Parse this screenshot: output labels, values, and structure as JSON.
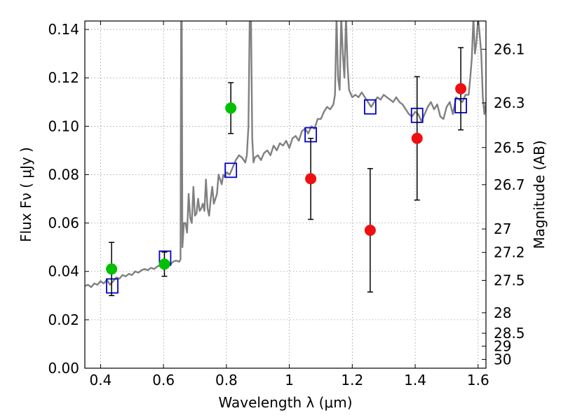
{
  "chart_data": {
    "type": "scatter",
    "xlabel": "Wavelength  λ (μm)",
    "ylabel": "Flux  Fν  ( μJy )",
    "ylabel_right": "Magnitude (AB)",
    "xlim": [
      0.35,
      1.625
    ],
    "ylim": [
      0.0,
      0.1435
    ],
    "grid": true,
    "x_ticks": [
      0.4,
      0.6,
      0.8,
      1.0,
      1.2,
      1.4,
      1.6
    ],
    "x_tick_labels": [
      "0.4",
      "0.6",
      "0.8",
      "1",
      "1.2",
      "1.4",
      "1.6"
    ],
    "y_ticks": [
      0.0,
      0.02,
      0.04,
      0.06,
      0.08,
      0.1,
      0.12,
      0.14
    ],
    "y_tick_labels": [
      "0.00",
      "0.02",
      "0.04",
      "0.06",
      "0.08",
      "0.10",
      "0.12",
      "0.14"
    ],
    "right_ticks": [
      {
        "mag": 26.1,
        "label": "26.1"
      },
      {
        "mag": 26.3,
        "label": "26.3"
      },
      {
        "mag": 26.5,
        "label": "26.5"
      },
      {
        "mag": 26.7,
        "label": "26.7"
      },
      {
        "mag": 27.0,
        "label": "27"
      },
      {
        "mag": 27.2,
        "label": "27.2"
      },
      {
        "mag": 27.5,
        "label": "27.5"
      },
      {
        "mag": 28.0,
        "label": "28"
      },
      {
        "mag": 28.5,
        "label": "28.5"
      },
      {
        "mag": 29.0,
        "label": "29"
      },
      {
        "mag": 30.0,
        "label": "30"
      }
    ],
    "series": [
      {
        "kind": "line",
        "color": "#808080",
        "points": [
          [
            0.35,
            0.034
          ],
          [
            0.36,
            0.0345
          ],
          [
            0.37,
            0.0335
          ],
          [
            0.38,
            0.035
          ],
          [
            0.39,
            0.0345
          ],
          [
            0.4,
            0.036
          ],
          [
            0.41,
            0.035
          ],
          [
            0.42,
            0.0365
          ],
          [
            0.43,
            0.0345
          ],
          [
            0.44,
            0.036
          ],
          [
            0.45,
            0.0375
          ],
          [
            0.46,
            0.037
          ],
          [
            0.47,
            0.0385
          ],
          [
            0.48,
            0.038
          ],
          [
            0.49,
            0.039
          ],
          [
            0.5,
            0.0385
          ],
          [
            0.51,
            0.04
          ],
          [
            0.52,
            0.0395
          ],
          [
            0.53,
            0.0405
          ],
          [
            0.54,
            0.041
          ],
          [
            0.55,
            0.0405
          ],
          [
            0.56,
            0.0415
          ],
          [
            0.57,
            0.041
          ],
          [
            0.58,
            0.042
          ],
          [
            0.59,
            0.0425
          ],
          [
            0.6,
            0.0415
          ],
          [
            0.61,
            0.043
          ],
          [
            0.62,
            0.0425
          ],
          [
            0.63,
            0.044
          ],
          [
            0.64,
            0.0445
          ],
          [
            0.65,
            0.044
          ],
          [
            0.654,
            0.045
          ],
          [
            0.656,
            0.145
          ],
          [
            0.658,
            0.145
          ],
          [
            0.66,
            0.05
          ],
          [
            0.665,
            0.06
          ],
          [
            0.67,
            0.06
          ],
          [
            0.675,
            0.056
          ],
          [
            0.68,
            0.072
          ],
          [
            0.685,
            0.062
          ],
          [
            0.69,
            0.06
          ],
          [
            0.695,
            0.075
          ],
          [
            0.7,
            0.063
          ],
          [
            0.705,
            0.064
          ],
          [
            0.71,
            0.07
          ],
          [
            0.715,
            0.065
          ],
          [
            0.72,
            0.066
          ],
          [
            0.725,
            0.068
          ],
          [
            0.73,
            0.065
          ],
          [
            0.735,
            0.078
          ],
          [
            0.74,
            0.066
          ],
          [
            0.745,
            0.063
          ],
          [
            0.75,
            0.07
          ],
          [
            0.755,
            0.075
          ],
          [
            0.76,
            0.068
          ],
          [
            0.765,
            0.07
          ],
          [
            0.77,
            0.072
          ],
          [
            0.775,
            0.08
          ],
          [
            0.78,
            0.078
          ],
          [
            0.785,
            0.076
          ],
          [
            0.79,
            0.08
          ],
          [
            0.795,
            0.079
          ],
          [
            0.8,
            0.081
          ],
          [
            0.81,
            0.08
          ],
          [
            0.82,
            0.083
          ],
          [
            0.83,
            0.086
          ],
          [
            0.84,
            0.088
          ],
          [
            0.85,
            0.087
          ],
          [
            0.86,
            0.085
          ],
          [
            0.865,
            0.088
          ],
          [
            0.87,
            0.1
          ],
          [
            0.874,
            0.145
          ],
          [
            0.878,
            0.145
          ],
          [
            0.882,
            0.095
          ],
          [
            0.886,
            0.085
          ],
          [
            0.89,
            0.087
          ],
          [
            0.9,
            0.088
          ],
          [
            0.91,
            0.086
          ],
          [
            0.92,
            0.089
          ],
          [
            0.93,
            0.09
          ],
          [
            0.94,
            0.088
          ],
          [
            0.95,
            0.092
          ],
          [
            0.96,
            0.09
          ],
          [
            0.97,
            0.093
          ],
          [
            0.98,
            0.092
          ],
          [
            0.99,
            0.094
          ],
          [
            1.0,
            0.091
          ],
          [
            1.01,
            0.095
          ],
          [
            1.02,
            0.096
          ],
          [
            1.03,
            0.094
          ],
          [
            1.04,
            0.098
          ],
          [
            1.05,
            0.099
          ],
          [
            1.06,
            0.097
          ],
          [
            1.07,
            0.1
          ],
          [
            1.08,
            0.099
          ],
          [
            1.09,
            0.103
          ],
          [
            1.1,
            0.103
          ],
          [
            1.11,
            0.106
          ],
          [
            1.12,
            0.108
          ],
          [
            1.13,
            0.107
          ],
          [
            1.14,
            0.109
          ],
          [
            1.145,
            0.113
          ],
          [
            1.15,
            0.145
          ],
          [
            1.155,
            0.12
          ],
          [
            1.16,
            0.115
          ],
          [
            1.165,
            0.145
          ],
          [
            1.17,
            0.13
          ],
          [
            1.175,
            0.12
          ],
          [
            1.18,
            0.145
          ],
          [
            1.185,
            0.125
          ],
          [
            1.19,
            0.115
          ],
          [
            1.2,
            0.112
          ],
          [
            1.21,
            0.113
          ],
          [
            1.22,
            0.112
          ],
          [
            1.23,
            0.114
          ],
          [
            1.24,
            0.112
          ],
          [
            1.25,
            0.11
          ],
          [
            1.26,
            0.108
          ],
          [
            1.27,
            0.11
          ],
          [
            1.28,
            0.112
          ],
          [
            1.29,
            0.111
          ],
          [
            1.3,
            0.113
          ],
          [
            1.31,
            0.112
          ],
          [
            1.32,
            0.111
          ],
          [
            1.33,
            0.11
          ],
          [
            1.34,
            0.112
          ],
          [
            1.35,
            0.11
          ],
          [
            1.36,
            0.109
          ],
          [
            1.37,
            0.107
          ],
          [
            1.38,
            0.105
          ],
          [
            1.39,
            0.104
          ],
          [
            1.4,
            0.106
          ],
          [
            1.41,
            0.105
          ],
          [
            1.42,
            0.102
          ],
          [
            1.43,
            0.105
          ],
          [
            1.44,
            0.108
          ],
          [
            1.45,
            0.11
          ],
          [
            1.46,
            0.107
          ],
          [
            1.47,
            0.109
          ],
          [
            1.48,
            0.104
          ],
          [
            1.49,
            0.103
          ],
          [
            1.5,
            0.108
          ],
          [
            1.51,
            0.11
          ],
          [
            1.52,
            0.105
          ],
          [
            1.53,
            0.112
          ],
          [
            1.54,
            0.111
          ],
          [
            1.55,
            0.11
          ],
          [
            1.56,
            0.113
          ],
          [
            1.57,
            0.113
          ],
          [
            1.575,
            0.12
          ],
          [
            1.58,
            0.128
          ],
          [
            1.585,
            0.145
          ],
          [
            1.59,
            0.13
          ],
          [
            1.595,
            0.135
          ],
          [
            1.6,
            0.145
          ],
          [
            1.605,
            0.138
          ],
          [
            1.61,
            0.13
          ],
          [
            1.615,
            0.112
          ],
          [
            1.62,
            0.105
          ],
          [
            1.625,
            0.11
          ]
        ]
      },
      {
        "kind": "open-square",
        "color": "#0000cc",
        "points": [
          [
            0.437,
            0.034
          ],
          [
            0.605,
            0.0455
          ],
          [
            0.814,
            0.0818
          ],
          [
            1.068,
            0.0965
          ],
          [
            1.257,
            0.108
          ],
          [
            1.406,
            0.1045
          ],
          [
            1.545,
            0.1085
          ]
        ]
      },
      {
        "kind": "filled-circle",
        "color": "#00c000",
        "points": [
          [
            0.435,
            0.041
          ],
          [
            0.603,
            0.043
          ],
          [
            0.814,
            0.1075
          ]
        ],
        "errors": [
          [
            0.03,
            0.052
          ],
          [
            0.038,
            0.048
          ],
          [
            0.097,
            0.118
          ]
        ]
      },
      {
        "kind": "filled-circle",
        "color": "#ee1010",
        "points": [
          [
            1.068,
            0.0783
          ],
          [
            1.257,
            0.057
          ],
          [
            1.406,
            0.095
          ],
          [
            1.545,
            0.1155
          ]
        ],
        "errors": [
          [
            0.0615,
            0.095
          ],
          [
            0.0315,
            0.0825
          ],
          [
            0.0695,
            0.1205
          ],
          [
            0.0985,
            0.1325
          ]
        ]
      }
    ]
  }
}
